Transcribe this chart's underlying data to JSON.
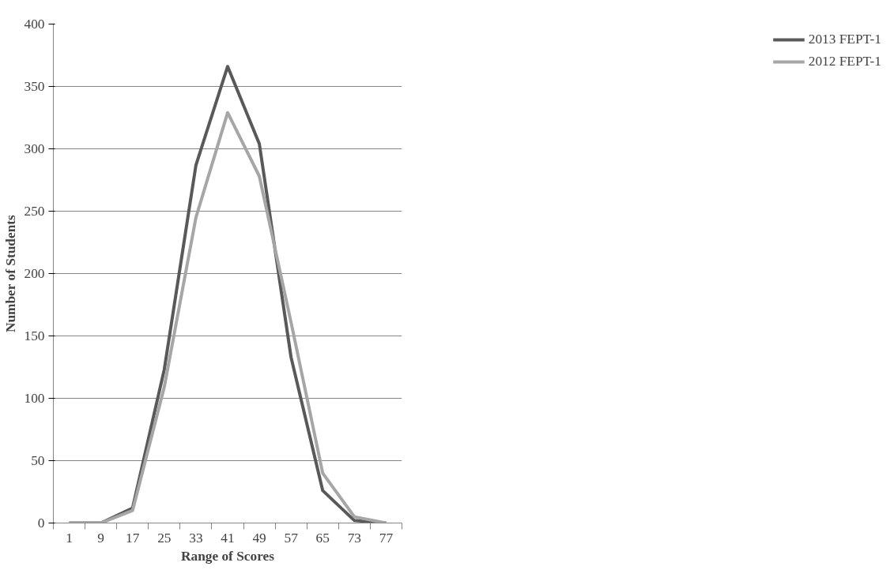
{
  "chart_data": {
    "type": "line",
    "xlabel": "Range of Scores",
    "ylabel": "Number of Students",
    "categories": [
      "1",
      "9",
      "17",
      "25",
      "33",
      "41",
      "49",
      "57",
      "65",
      "73",
      "77"
    ],
    "series": [
      {
        "name": "2013 FEPT-1",
        "color": "#595959",
        "values": [
          0,
          0,
          12,
          123,
          287,
          366,
          304,
          133,
          26,
          2,
          0
        ]
      },
      {
        "name": "2012 FEPT-1",
        "color": "#a6a6a6",
        "values": [
          0,
          0,
          10,
          109,
          245,
          329,
          278,
          161,
          40,
          5,
          0
        ]
      }
    ],
    "ylim": [
      0,
      400
    ],
    "yticks": [
      0,
      50,
      100,
      150,
      200,
      250,
      300,
      350,
      400
    ],
    "grid": "y",
    "legend": "right",
    "marker": "none",
    "line_style": "solid"
  }
}
